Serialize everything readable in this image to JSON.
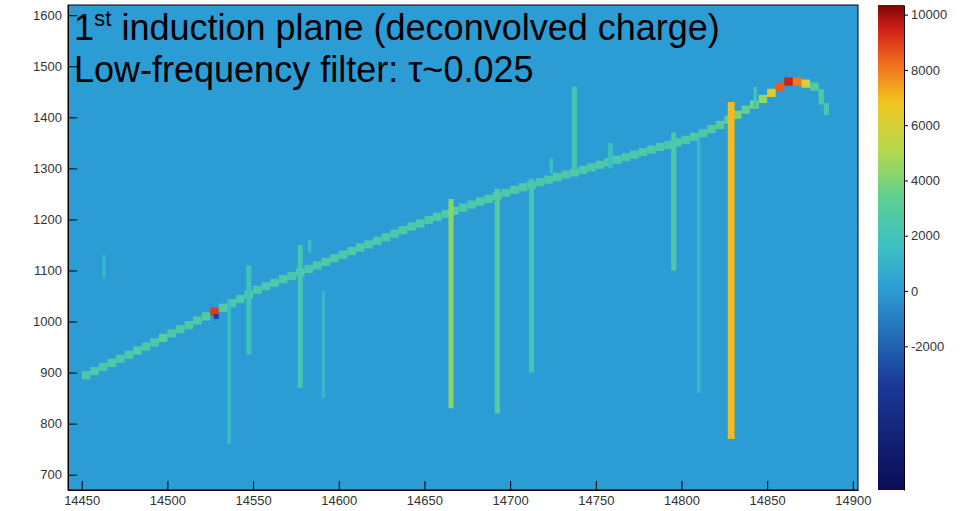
{
  "chart_data": {
    "type": "heatmap",
    "title": "1st induction plane (deconvolved charge)",
    "subtitle": "Low-frequency filter: τ~0.025",
    "xlim": [
      14442,
      14903
    ],
    "xticks": [
      14450,
      14500,
      14550,
      14600,
      14650,
      14700,
      14750,
      14800,
      14850,
      14900
    ],
    "ylim": [
      670,
      1620
    ],
    "yticks": [
      700,
      800,
      900,
      1000,
      1100,
      1200,
      1300,
      1400,
      1500,
      1600
    ],
    "colorbar": {
      "range": [
        -7200,
        10350
      ],
      "ticks": [
        10000,
        8000,
        6000,
        4000,
        2000,
        0,
        -2000
      ]
    },
    "cells": [
      {
        "x": [
          14450,
          14455
        ],
        "y": [
          887,
          903
        ],
        "value": 2400
      },
      {
        "x": [
          14455,
          14460
        ],
        "y": [
          895,
          911
        ],
        "value": 2600
      },
      {
        "x": [
          14460,
          14465
        ],
        "y": [
          903,
          919
        ],
        "value": 2500
      },
      {
        "x": [
          14465,
          14470
        ],
        "y": [
          911,
          927
        ],
        "value": 2700
      },
      {
        "x": [
          14470,
          14475
        ],
        "y": [
          919,
          935
        ],
        "value": 2500
      },
      {
        "x": [
          14475,
          14480
        ],
        "y": [
          927,
          943
        ],
        "value": 2600
      },
      {
        "x": [
          14480,
          14485
        ],
        "y": [
          935,
          951
        ],
        "value": 2800
      },
      {
        "x": [
          14485,
          14490
        ],
        "y": [
          943,
          959
        ],
        "value": 2500
      },
      {
        "x": [
          14490,
          14495
        ],
        "y": [
          951,
          967
        ],
        "value": 2600
      },
      {
        "x": [
          14495,
          14500
        ],
        "y": [
          960,
          976
        ],
        "value": 3200
      },
      {
        "x": [
          14500,
          14505
        ],
        "y": [
          969,
          985
        ],
        "value": 2600
      },
      {
        "x": [
          14505,
          14510
        ],
        "y": [
          977,
          993
        ],
        "value": 2500
      },
      {
        "x": [
          14510,
          14515
        ],
        "y": [
          985,
          1001
        ],
        "value": 2700
      },
      {
        "x": [
          14515,
          14520
        ],
        "y": [
          994,
          1010
        ],
        "value": 2600
      },
      {
        "x": [
          14520,
          14525
        ],
        "y": [
          1002,
          1018
        ],
        "value": 3000
      },
      {
        "x": [
          14525,
          14530
        ],
        "y": [
          1011,
          1027
        ],
        "value": 9000
      },
      {
        "x": [
          14530,
          14535
        ],
        "y": [
          1019,
          1035
        ],
        "value": 2800
      },
      {
        "x": [
          14535,
          14540
        ],
        "y": [
          1028,
          1044
        ],
        "value": 2600
      },
      {
        "x": [
          14540,
          14545
        ],
        "y": [
          1036,
          1052
        ],
        "value": 2500
      },
      {
        "x": [
          14545,
          14550
        ],
        "y": [
          1045,
          1061
        ],
        "value": 2700
      },
      {
        "x": [
          14550,
          14555
        ],
        "y": [
          1054,
          1070
        ],
        "value": 2600
      },
      {
        "x": [
          14555,
          14560
        ],
        "y": [
          1061,
          1077
        ],
        "value": 2500
      },
      {
        "x": [
          14560,
          14565
        ],
        "y": [
          1068,
          1084
        ],
        "value": 2600
      },
      {
        "x": [
          14565,
          14570
        ],
        "y": [
          1075,
          1091
        ],
        "value": 2700
      },
      {
        "x": [
          14570,
          14575
        ],
        "y": [
          1081,
          1097
        ],
        "value": 2500
      },
      {
        "x": [
          14575,
          14580
        ],
        "y": [
          1088,
          1104
        ],
        "value": 2600
      },
      {
        "x": [
          14580,
          14585
        ],
        "y": [
          1095,
          1111
        ],
        "value": 2600
      },
      {
        "x": [
          14585,
          14590
        ],
        "y": [
          1102,
          1118
        ],
        "value": 2500
      },
      {
        "x": [
          14590,
          14595
        ],
        "y": [
          1109,
          1125
        ],
        "value": 2700
      },
      {
        "x": [
          14595,
          14600
        ],
        "y": [
          1116,
          1132
        ],
        "value": 2600
      },
      {
        "x": [
          14600,
          14605
        ],
        "y": [
          1123,
          1139
        ],
        "value": 2500
      },
      {
        "x": [
          14605,
          14610
        ],
        "y": [
          1130,
          1146
        ],
        "value": 2600
      },
      {
        "x": [
          14610,
          14615
        ],
        "y": [
          1137,
          1153
        ],
        "value": 2700
      },
      {
        "x": [
          14615,
          14620
        ],
        "y": [
          1143,
          1159
        ],
        "value": 2500
      },
      {
        "x": [
          14620,
          14625
        ],
        "y": [
          1150,
          1166
        ],
        "value": 2600
      },
      {
        "x": [
          14625,
          14630
        ],
        "y": [
          1157,
          1173
        ],
        "value": 2600
      },
      {
        "x": [
          14630,
          14635
        ],
        "y": [
          1164,
          1180
        ],
        "value": 2500
      },
      {
        "x": [
          14635,
          14640
        ],
        "y": [
          1171,
          1187
        ],
        "value": 2700
      },
      {
        "x": [
          14640,
          14645
        ],
        "y": [
          1178,
          1194
        ],
        "value": 2600
      },
      {
        "x": [
          14645,
          14650
        ],
        "y": [
          1184,
          1200
        ],
        "value": 2500
      },
      {
        "x": [
          14650,
          14655
        ],
        "y": [
          1191,
          1207
        ],
        "value": 2600
      },
      {
        "x": [
          14655,
          14660
        ],
        "y": [
          1197,
          1213
        ],
        "value": 2700
      },
      {
        "x": [
          14660,
          14665
        ],
        "y": [
          1203,
          1219
        ],
        "value": 2600
      },
      {
        "x": [
          14665,
          14670
        ],
        "y": [
          1209,
          1225
        ],
        "value": 3000
      },
      {
        "x": [
          14670,
          14675
        ],
        "y": [
          1215,
          1231
        ],
        "value": 2600
      },
      {
        "x": [
          14675,
          14680
        ],
        "y": [
          1221,
          1237
        ],
        "value": 2500
      },
      {
        "x": [
          14680,
          14685
        ],
        "y": [
          1227,
          1243
        ],
        "value": 2600
      },
      {
        "x": [
          14685,
          14690
        ],
        "y": [
          1232,
          1248
        ],
        "value": 2700
      },
      {
        "x": [
          14690,
          14695
        ],
        "y": [
          1238,
          1254
        ],
        "value": 2600
      },
      {
        "x": [
          14695,
          14700
        ],
        "y": [
          1244,
          1260
        ],
        "value": 2500
      },
      {
        "x": [
          14700,
          14705
        ],
        "y": [
          1250,
          1266
        ],
        "value": 2600
      },
      {
        "x": [
          14705,
          14710
        ],
        "y": [
          1255,
          1271
        ],
        "value": 2600
      },
      {
        "x": [
          14710,
          14715
        ],
        "y": [
          1260,
          1276
        ],
        "value": 2700
      },
      {
        "x": [
          14715,
          14720
        ],
        "y": [
          1265,
          1281
        ],
        "value": 2500
      },
      {
        "x": [
          14720,
          14725
        ],
        "y": [
          1270,
          1286
        ],
        "value": 2600
      },
      {
        "x": [
          14725,
          14730
        ],
        "y": [
          1275,
          1291
        ],
        "value": 2600
      },
      {
        "x": [
          14730,
          14735
        ],
        "y": [
          1280,
          1296
        ],
        "value": 2500
      },
      {
        "x": [
          14735,
          14740
        ],
        "y": [
          1284,
          1300
        ],
        "value": 2700
      },
      {
        "x": [
          14740,
          14745
        ],
        "y": [
          1289,
          1305
        ],
        "value": 2600
      },
      {
        "x": [
          14745,
          14750
        ],
        "y": [
          1294,
          1310
        ],
        "value": 2500
      },
      {
        "x": [
          14750,
          14755
        ],
        "y": [
          1299,
          1315
        ],
        "value": 2600
      },
      {
        "x": [
          14755,
          14760
        ],
        "y": [
          1304,
          1320
        ],
        "value": 2700
      },
      {
        "x": [
          14760,
          14765
        ],
        "y": [
          1309,
          1325
        ],
        "value": 2600
      },
      {
        "x": [
          14765,
          14770
        ],
        "y": [
          1314,
          1330
        ],
        "value": 2500
      },
      {
        "x": [
          14770,
          14775
        ],
        "y": [
          1319,
          1335
        ],
        "value": 2600
      },
      {
        "x": [
          14775,
          14780
        ],
        "y": [
          1324,
          1340
        ],
        "value": 2600
      },
      {
        "x": [
          14780,
          14785
        ],
        "y": [
          1329,
          1345
        ],
        "value": 2700
      },
      {
        "x": [
          14785,
          14790
        ],
        "y": [
          1334,
          1350
        ],
        "value": 2600
      },
      {
        "x": [
          14790,
          14795
        ],
        "y": [
          1338,
          1354
        ],
        "value": 2500
      },
      {
        "x": [
          14795,
          14800
        ],
        "y": [
          1343,
          1359
        ],
        "value": 2800
      },
      {
        "x": [
          14800,
          14805
        ],
        "y": [
          1348,
          1364
        ],
        "value": 2600
      },
      {
        "x": [
          14805,
          14810
        ],
        "y": [
          1354,
          1370
        ],
        "value": 2700
      },
      {
        "x": [
          14810,
          14815
        ],
        "y": [
          1361,
          1377
        ],
        "value": 2600
      },
      {
        "x": [
          14815,
          14820
        ],
        "y": [
          1369,
          1385
        ],
        "value": 2800
      },
      {
        "x": [
          14820,
          14825
        ],
        "y": [
          1377,
          1393
        ],
        "value": 3000
      },
      {
        "x": [
          14825,
          14830
        ],
        "y": [
          1387,
          1403
        ],
        "value": 3200
      },
      {
        "x": [
          14830,
          14835
        ],
        "y": [
          1397,
          1413
        ],
        "value": 4000
      },
      {
        "x": [
          14835,
          14840
        ],
        "y": [
          1407,
          1423
        ],
        "value": 3500
      },
      {
        "x": [
          14840,
          14845
        ],
        "y": [
          1417,
          1433
        ],
        "value": 3800
      },
      {
        "x": [
          14845,
          14850
        ],
        "y": [
          1428,
          1444
        ],
        "value": 4500
      },
      {
        "x": [
          14850,
          14855
        ],
        "y": [
          1440,
          1456
        ],
        "value": 6500
      },
      {
        "x": [
          14855,
          14860
        ],
        "y": [
          1452,
          1468
        ],
        "value": 8500
      },
      {
        "x": [
          14860,
          14865
        ],
        "y": [
          1462,
          1478
        ],
        "value": 9500
      },
      {
        "x": [
          14865,
          14870
        ],
        "y": [
          1462,
          1478
        ],
        "value": 8000
      },
      {
        "x": [
          14870,
          14875
        ],
        "y": [
          1458,
          1474
        ],
        "value": 6000
      },
      {
        "x": [
          14875,
          14880
        ],
        "y": [
          1452,
          1468
        ],
        "value": 3000
      },
      {
        "x": [
          14880,
          14883
        ],
        "y": [
          1425,
          1455
        ],
        "value": 2600
      },
      {
        "x": [
          14883,
          14886
        ],
        "y": [
          1405,
          1428
        ],
        "value": 2400
      },
      {
        "x": [
          14527,
          14530
        ],
        "y": [
          1005,
          1015
        ],
        "value": -3000
      },
      {
        "x": [
          14462,
          14464
        ],
        "y": [
          1085,
          1130
        ],
        "value": 1200
      },
      {
        "x": [
          14535,
          14537
        ],
        "y": [
          760,
          1040
        ],
        "value": 1500
      },
      {
        "x": [
          14546,
          14549
        ],
        "y": [
          935,
          1110
        ],
        "value": 1800
      },
      {
        "x": [
          14576,
          14579
        ],
        "y": [
          870,
          1150
        ],
        "value": 2200
      },
      {
        "x": [
          14582,
          14584
        ],
        "y": [
          1135,
          1160
        ],
        "value": 1500
      },
      {
        "x": [
          14590,
          14592
        ],
        "y": [
          850,
          1060
        ],
        "value": 1200
      },
      {
        "x": [
          14664,
          14667
        ],
        "y": [
          830,
          1240
        ],
        "value": 4200
      },
      {
        "x": [
          14691,
          14694
        ],
        "y": [
          820,
          1260
        ],
        "value": 3000
      },
      {
        "x": [
          14711,
          14714
        ],
        "y": [
          900,
          1280
        ],
        "value": 2200
      },
      {
        "x": [
          14723,
          14725
        ],
        "y": [
          1290,
          1320
        ],
        "value": 1500
      },
      {
        "x": [
          14736,
          14739
        ],
        "y": [
          1300,
          1460
        ],
        "value": 2200
      },
      {
        "x": [
          14757,
          14760
        ],
        "y": [
          1300,
          1350
        ],
        "value": 1600
      },
      {
        "x": [
          14794,
          14797
        ],
        "y": [
          1100,
          1370
        ],
        "value": 2600
      },
      {
        "x": [
          14809,
          14811
        ],
        "y": [
          860,
          1360
        ],
        "value": 1200
      },
      {
        "x": [
          14827,
          14831
        ],
        "y": [
          770,
          1430
        ],
        "value": 7000
      },
      {
        "x": [
          14842,
          14844
        ],
        "y": [
          1420,
          1460
        ],
        "value": 2000
      }
    ]
  }
}
